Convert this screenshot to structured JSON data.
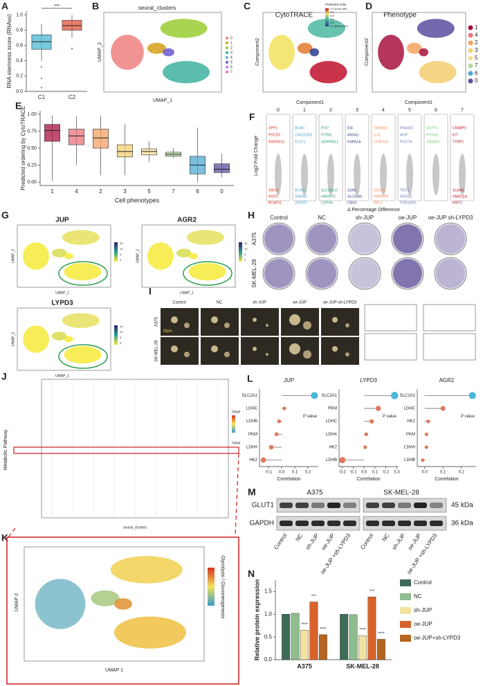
{
  "chart_data": [
    {
      "type": "box",
      "panel": "A",
      "ylabel": "RNA stemness score (RNAss)",
      "categories": [
        "C1",
        "C2"
      ],
      "boxes": [
        {
          "low": 0.4,
          "q1": 0.55,
          "median": 0.65,
          "q3": 0.74,
          "high": 0.88,
          "outliers": [
            0.32,
            0.17,
            0.05
          ]
        },
        {
          "low": 0.7,
          "q1": 0.8,
          "median": 0.86,
          "q3": 0.93,
          "high": 1.0,
          "outliers": [
            0.56
          ]
        }
      ],
      "colors": [
        "#4bb8d6",
        "#e0533c"
      ],
      "annotation": "***",
      "ylim": [
        0,
        1.05
      ],
      "yticks": [
        {
          "value": 0,
          "label": "0.0"
        },
        {
          "value": 0.2,
          "label": "0.2"
        },
        {
          "value": 0.4,
          "label": "0.4"
        },
        {
          "value": 0.6,
          "label": "0.6"
        },
        {
          "value": 0.8,
          "label": "0.8"
        },
        {
          "value": 1,
          "label": "1.0"
        }
      ]
    },
    {
      "type": "box",
      "panel": "E",
      "ylabel": "Predicted ordering by CytoTRACE",
      "xlabel": "Cell phenotypes",
      "categories": [
        "1",
        "4",
        "2",
        "3",
        "5",
        "7",
        "6",
        "0"
      ],
      "boxes": [
        {
          "low": 0.02,
          "q1": 0.6,
          "median": 0.76,
          "q3": 0.85,
          "high": 0.98
        },
        {
          "low": 0.25,
          "q1": 0.55,
          "median": 0.68,
          "q3": 0.78,
          "high": 0.97
        },
        {
          "low": 0.1,
          "q1": 0.5,
          "median": 0.65,
          "q3": 0.78,
          "high": 0.98
        },
        {
          "low": 0.1,
          "q1": 0.37,
          "median": 0.45,
          "q3": 0.55,
          "high": 0.85
        },
        {
          "low": 0.3,
          "q1": 0.4,
          "median": 0.45,
          "q3": 0.49,
          "high": 0.6
        },
        {
          "low": 0.35,
          "q1": 0.38,
          "median": 0.41,
          "q3": 0.44,
          "high": 0.5
        },
        {
          "low": 0.0,
          "q1": 0.12,
          "median": 0.25,
          "q3": 0.38,
          "high": 0.8
        },
        {
          "low": 0.07,
          "q1": 0.14,
          "median": 0.19,
          "q3": 0.27,
          "high": 0.42
        }
      ],
      "colors": [
        "#a8123e",
        "#e8747c",
        "#f4a261",
        "#f3cf72",
        "#f6df98",
        "#b5d9a0",
        "#4fa9d2",
        "#5b4fa0"
      ],
      "ylim": [
        -0.05,
        1.05
      ],
      "yticks": [
        {
          "value": 0,
          "label": "0.00"
        },
        {
          "value": 0.25,
          "label": "0.25"
        },
        {
          "value": 0.5,
          "label": "0.50"
        },
        {
          "value": 0.75,
          "label": "0.75"
        },
        {
          "value": 1,
          "label": "1.00"
        }
      ]
    },
    {
      "type": "lollipop",
      "panel": "L",
      "title": "JUP",
      "xlabel": "Correlation",
      "legend_title": "P value",
      "color": "#4bb8d6",
      "categories": [
        "SLC2A1",
        "LDHC",
        "LDHB",
        "PKM",
        "LDHA",
        "HK2"
      ],
      "values": [
        0.25,
        0.02,
        -0.02,
        -0.04,
        -0.08,
        -0.14
      ],
      "xlim": [
        -0.17,
        0.28
      ],
      "xticks": [
        {
          "value": -0.1,
          "label": "-0.1"
        },
        {
          "value": 0,
          "label": "0.0"
        },
        {
          "value": 0.1,
          "label": "0.1"
        },
        {
          "value": 0.2,
          "label": "0.2"
        }
      ]
    },
    {
      "type": "lollipop",
      "title": "LYPD3",
      "xlabel": "Correlation",
      "legend_title": "P value",
      "color": "#4bb8d6",
      "categories": [
        "SLC2A1",
        "PKM",
        "LDHC",
        "LDHA",
        "HK2",
        "LDHB"
      ],
      "values": [
        0.28,
        0.13,
        0.07,
        0.02,
        0.01,
        -0.2
      ],
      "xlim": [
        -0.23,
        0.31
      ],
      "xticks": [
        {
          "value": -0.2,
          "label": "-0.2"
        },
        {
          "value": -0.1,
          "label": "-0.1"
        },
        {
          "value": 0,
          "label": "0.0"
        },
        {
          "value": 0.1,
          "label": "0.1"
        },
        {
          "value": 0.2,
          "label": "0.2"
        },
        {
          "value": 0.3,
          "label": "0.3"
        }
      ]
    },
    {
      "type": "lollipop",
      "title": "AGR2",
      "xlabel": "Correlation",
      "legend_title": "P value",
      "color": "#4bb8d6",
      "categories": [
        "SLC2A1",
        "LDHC",
        "HK2",
        "PKM",
        "LDHA",
        "LDHB"
      ],
      "values": [
        0.26,
        0.1,
        0.02,
        0.01,
        0.01,
        -0.01
      ],
      "xlim": [
        -0.04,
        0.28
      ],
      "xticks": [
        {
          "value": 0,
          "label": "0.0"
        },
        {
          "value": 0.1,
          "label": "0.1"
        },
        {
          "value": 0.2,
          "label": "0.2"
        }
      ]
    },
    {
      "type": "bar",
      "panel": "N",
      "ylabel": "Relative protein expression",
      "categories": [
        "A375",
        "SK-MEL-28"
      ],
      "series": [
        {
          "name": "Control",
          "color": "#3d6b57",
          "values": [
            1.0,
            1.0
          ]
        },
        {
          "name": "NC",
          "color": "#8fbc8f",
          "values": [
            1.02,
            0.99
          ]
        },
        {
          "name": "sh-JUP",
          "color": "#f2e3a0",
          "values": [
            0.65,
            0.53
          ],
          "stars": [
            "****",
            "****"
          ]
        },
        {
          "name": "oe-JUP",
          "color": "#d9622b",
          "values": [
            1.27,
            1.38
          ],
          "stars": [
            "***",
            "***"
          ]
        },
        {
          "name": "oe-JUP+sh-LYPD3",
          "color": "#b5651d",
          "values": [
            0.55,
            0.45
          ],
          "stars": [
            "****",
            "****"
          ]
        }
      ],
      "ylim": [
        0,
        1.75
      ],
      "yticks": [
        {
          "value": 0,
          "label": "0.0"
        },
        {
          "value": 0.5,
          "label": "0.5"
        },
        {
          "value": 1,
          "label": "1.0"
        },
        {
          "value": 1.5,
          "label": "1.5"
        }
      ]
    }
  ],
  "panels": {
    "B": {
      "label": "B",
      "title": "seurat_clusters",
      "xlabel": "UMAP_1",
      "ylabel": "UMAP_2",
      "legend": [
        "0",
        "1",
        "2",
        "3",
        "4",
        "5",
        "6",
        "7"
      ]
    },
    "C": {
      "label": "C",
      "title": "CytoTRACE",
      "xlabel": "Component1",
      "ylabel": "Component2",
      "legend_title": "Predicted order",
      "legend": [
        "1.0 (Less diff.)",
        "0.8",
        "0.6",
        "0.4",
        "0.2",
        "0.0 (More diff.)"
      ]
    },
    "D": {
      "label": "D",
      "title": "Phenotype",
      "xlabel": "Component1",
      "ylabel": "Component2",
      "legend": [
        "1",
        "4",
        "2",
        "3",
        "5",
        "7",
        "6",
        "0"
      ]
    },
    "F": {
      "label": "F",
      "ylabel": "Log2-Fold Change",
      "xlabel": "Δ Percentage Difference",
      "columns": [
        {
          "name": "0",
          "color": "#d7301f",
          "genes": [
            "SPP1",
            "PDCD6",
            "RARRES2",
            "SMC6",
            "RHOC",
            "BCAP31"
          ]
        },
        {
          "name": "1",
          "color": "#4aa3c8",
          "genes": [
            "BCAN",
            "LINC02303",
            "FLOT1",
            "BCAS3",
            "SNHG8",
            "ZNF207"
          ]
        },
        {
          "name": "2",
          "color": "#2a9d6f",
          "genes": [
            "IFI27",
            "IFITM1",
            "SERPING1",
            "SLC25A13",
            "HNRNPC",
            "COPS6"
          ]
        },
        {
          "name": "3",
          "color": "#2c3e7a",
          "genes": [
            "ID4",
            "ANXA1",
            "HSPA1A",
            "SSH1",
            "SLC30A5",
            "CBX4"
          ]
        },
        {
          "name": "4",
          "color": "#f08a5d",
          "genes": [
            "TMSB4X",
            "IL32",
            "CORO1A",
            "DDX24",
            "HNRNPD",
            "RBL2"
          ]
        },
        {
          "name": "5",
          "color": "#6a7fb5",
          "genes": [
            "RNASE1",
            "MGP",
            "POSTN",
            "TRIT1",
            "NEDD8",
            "TOR1AIP1"
          ]
        },
        {
          "name": "6",
          "color": "#7fc97f",
          "genes": [
            "GSTP1",
            "PFDN5",
            "TMSB4X"
          ]
        },
        {
          "name": "7",
          "color": "#c0112a",
          "genes": [
            "CRABP1",
            "KIT",
            "TYRP1",
            "SLAIN2",
            "FAM111A",
            "KRIT1"
          ]
        }
      ]
    },
    "G": {
      "label": "G",
      "xlabel": "UMAP_1",
      "ylabel": "UMAP_2",
      "plots": [
        "JUP",
        "AGR2",
        "LYPD3"
      ],
      "colorbar": [
        "0",
        "5",
        "10",
        "15"
      ]
    },
    "H": {
      "label": "H",
      "columns": [
        "Control",
        "NC",
        "sh-JUP",
        "oe-JUP",
        "oe-JUP sh-LYPD3"
      ],
      "rows": [
        "A375",
        "SK-MEL-28"
      ]
    },
    "I": {
      "label": "I",
      "columns": [
        "Control",
        "NC",
        "sh-JUP",
        "oe-JUP",
        "oe-JUP sh-LYPD3"
      ],
      "rows": [
        "A375",
        "SK-MEL-28"
      ],
      "scale": "50μm"
    },
    "J": {
      "label": "J",
      "ylabel": "Metabolic Pathway",
      "xlabel": "seurat_clusters",
      "legend": [
        "Value",
        "Value"
      ]
    },
    "K": {
      "label": "K",
      "xlabel": "UMAP 1",
      "ylabel": "UMAP 2",
      "legend_title": "Glycolysis / Gluconeogenesis"
    },
    "M": {
      "label": "M",
      "groups": [
        "A375",
        "SK-MEL-28"
      ],
      "bands": [
        {
          "name": "GLUT1",
          "size": "45 kDa"
        },
        {
          "name": "GAPDH",
          "size": "36 kDa"
        }
      ],
      "lanes": [
        "Control",
        "NC",
        "sh-JUP",
        "oe-JUP",
        "oe-JUP +sh-LYPD3"
      ]
    }
  }
}
